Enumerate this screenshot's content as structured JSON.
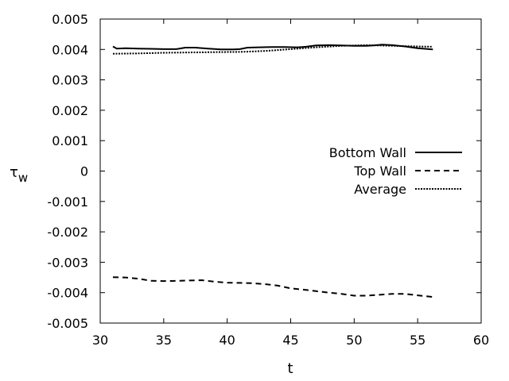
{
  "chart_data": {
    "type": "line",
    "title": "",
    "xlabel": "t",
    "ylabel": "τ",
    "ylabel_subscript": "w",
    "xlim": [
      30,
      60
    ],
    "ylim": [
      -0.005,
      0.005
    ],
    "xticks": [
      30,
      35,
      40,
      45,
      50,
      55,
      60
    ],
    "xtick_labels": [
      "30",
      "35",
      "40",
      "45",
      "50",
      "55",
      "60"
    ],
    "yticks": [
      -0.005,
      -0.004,
      -0.003,
      -0.002,
      -0.001,
      0,
      0.001,
      0.002,
      0.003,
      0.004,
      0.005
    ],
    "ytick_labels": [
      "-0.005",
      "-0.004",
      "-0.003",
      "-0.002",
      "-0.001",
      "0",
      "0.001",
      "0.002",
      "0.003",
      "0.004",
      "0.005"
    ],
    "grid": false,
    "legend_position": "center-right",
    "series": [
      {
        "name": "Bottom Wall",
        "style": "solid",
        "color": "#000000",
        "x": [
          31.0,
          31.3,
          32.0,
          33.0,
          34.0,
          35.0,
          36.0,
          36.7,
          37.5,
          38.5,
          39.5,
          40.5,
          41.0,
          41.6,
          42.5,
          43.5,
          44.5,
          45.5,
          46.2,
          47.0,
          48.0,
          49.0,
          50.0,
          51.0,
          51.5,
          52.2,
          53.0,
          54.0,
          55.0,
          56.2
        ],
        "y": [
          0.0041,
          0.00403,
          0.00404,
          0.00403,
          0.00402,
          0.00401,
          0.00401,
          0.00406,
          0.00406,
          0.00403,
          0.004,
          0.004,
          0.00401,
          0.00406,
          0.00407,
          0.00408,
          0.00408,
          0.00407,
          0.00409,
          0.00413,
          0.00414,
          0.00413,
          0.00412,
          0.00412,
          0.00413,
          0.00416,
          0.00414,
          0.0041,
          0.00404,
          0.004
        ]
      },
      {
        "name": "Top Wall",
        "style": "dashed",
        "color": "#000000",
        "x": [
          31.0,
          32.0,
          33.0,
          34.0,
          35.0,
          36.0,
          37.0,
          38.0,
          39.0,
          40.0,
          41.0,
          42.0,
          43.0,
          44.0,
          45.0,
          46.0,
          47.0,
          48.0,
          49.0,
          50.0,
          51.0,
          52.0,
          53.0,
          54.0,
          55.0,
          56.2
        ],
        "y": [
          -0.00349,
          -0.0035,
          -0.00354,
          -0.00361,
          -0.00362,
          -0.00361,
          -0.0036,
          -0.00359,
          -0.00364,
          -0.00367,
          -0.00368,
          -0.00369,
          -0.00372,
          -0.00377,
          -0.00386,
          -0.0039,
          -0.00395,
          -0.004,
          -0.00404,
          -0.0041,
          -0.0041,
          -0.00407,
          -0.00404,
          -0.00404,
          -0.00409,
          -0.00414
        ]
      },
      {
        "name": "Average",
        "style": "dotted",
        "color": "#000000",
        "x": [
          31.0,
          33.0,
          35.0,
          37.0,
          39.0,
          41.0,
          43.0,
          45.0,
          47.0,
          49.0,
          51.0,
          53.0,
          55.0,
          56.2
        ],
        "y": [
          0.00386,
          0.00387,
          0.00389,
          0.0039,
          0.00391,
          0.00392,
          0.00395,
          0.00401,
          0.00407,
          0.00412,
          0.00414,
          0.00412,
          0.0041,
          0.00409
        ]
      }
    ]
  }
}
